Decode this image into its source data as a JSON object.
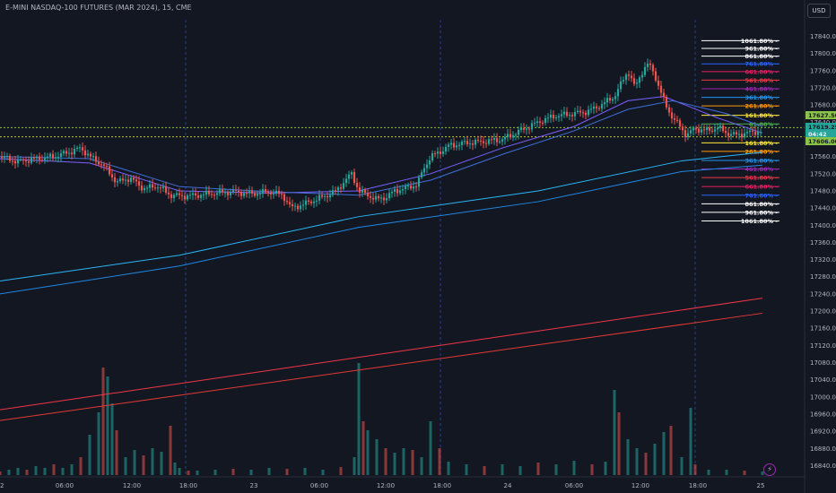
{
  "symbol_title": "E-MINI NASDAQ-100 FUTURES (MAR 2024), 15, CME",
  "currency_label": "USD",
  "chart_data": {
    "type": "candlestick",
    "ylim": [
      16820,
      17860
    ],
    "y_ticks": [
      17840,
      17800,
      17760,
      17720,
      17680,
      17640,
      17600,
      17560,
      17520,
      17480,
      17440,
      17400,
      17360,
      17320,
      17280,
      17240,
      17200,
      17160,
      17120,
      17080,
      17040,
      17000,
      16960,
      16920,
      16880,
      16840
    ],
    "x_ticks": [
      "2",
      "06:00",
      "12:00",
      "18:00",
      "23",
      "06:00",
      "12:00",
      "18:00",
      "24",
      "06:00",
      "12:00",
      "18:00",
      "25"
    ],
    "session_separators": [
      "18:00",
      "18:00",
      "18:00"
    ],
    "price_labels": [
      {
        "value": "17627.50",
        "color": "#8bc34a"
      },
      {
        "value": "17619.25",
        "color": "#26a69a"
      },
      {
        "value": "04:42",
        "color": "#26a69a"
      },
      {
        "value": "17606.00",
        "color": "#8bc34a"
      }
    ],
    "fib_levels": [
      {
        "label": "1061.80%",
        "value": 17830,
        "color": "#ffffff"
      },
      {
        "label": "961.80%",
        "value": 17812,
        "color": "#ffffff"
      },
      {
        "label": "861.80%",
        "value": 17794,
        "color": "#ffffff"
      },
      {
        "label": "761.80%",
        "value": 17776,
        "color": "#2962ff"
      },
      {
        "label": "661.80%",
        "value": 17758,
        "color": "#e91e63"
      },
      {
        "label": "561.80%",
        "value": 17738,
        "color": "#f23645"
      },
      {
        "label": "461.80%",
        "value": 17718,
        "color": "#9c27b0"
      },
      {
        "label": "361.80%",
        "value": 17698,
        "color": "#2196f3"
      },
      {
        "label": "261.80%",
        "value": 17678,
        "color": "#ff9800"
      },
      {
        "label": "161.80%",
        "value": 17656,
        "color": "#ffeb3b"
      },
      {
        "label": "61.80%",
        "value": 17636,
        "color": "#4caf50"
      },
      {
        "label": "161.80%",
        "value": 17592,
        "color": "#ffeb3b"
      },
      {
        "label": "261.80%",
        "value": 17572,
        "color": "#ff9800"
      },
      {
        "label": "361.80%",
        "value": 17551,
        "color": "#2196f3"
      },
      {
        "label": "461.80%",
        "value": 17531,
        "color": "#9c27b0"
      },
      {
        "label": "561.80%",
        "value": 17511,
        "color": "#f23645"
      },
      {
        "label": "661.80%",
        "value": 17490,
        "color": "#e91e63"
      },
      {
        "label": "761.80%",
        "value": 17470,
        "color": "#2962ff"
      },
      {
        "label": "861.80%",
        "value": 17450,
        "color": "#ffffff"
      },
      {
        "label": "961.80%",
        "value": 17430,
        "color": "#ffffff"
      },
      {
        "label": "1061.80%",
        "value": 17410,
        "color": "#ffffff"
      }
    ],
    "dotted_price_lines": [
      {
        "value": 17627.5,
        "color": "#8bc34a"
      },
      {
        "value": 17606,
        "color": "#c0ca33"
      }
    ],
    "close_path": [
      [
        0,
        17560
      ],
      [
        20,
        17548
      ],
      [
        40,
        17555
      ],
      [
        60,
        17560
      ],
      [
        80,
        17572
      ],
      [
        90,
        17580
      ],
      [
        100,
        17560
      ],
      [
        115,
        17540
      ],
      [
        130,
        17500
      ],
      [
        145,
        17510
      ],
      [
        160,
        17485
      ],
      [
        175,
        17492
      ],
      [
        190,
        17470
      ],
      [
        205,
        17468
      ],
      [
        220,
        17470
      ],
      [
        240,
        17475
      ],
      [
        260,
        17478
      ],
      [
        280,
        17473
      ],
      [
        300,
        17478
      ],
      [
        315,
        17470
      ],
      [
        325,
        17440
      ],
      [
        340,
        17450
      ],
      [
        360,
        17466
      ],
      [
        375,
        17480
      ],
      [
        385,
        17505
      ],
      [
        392,
        17520
      ],
      [
        400,
        17480
      ],
      [
        410,
        17470
      ],
      [
        420,
        17460
      ],
      [
        430,
        17465
      ],
      [
        440,
        17480
      ],
      [
        455,
        17488
      ],
      [
        465,
        17495
      ],
      [
        472,
        17530
      ],
      [
        480,
        17560
      ],
      [
        490,
        17570
      ],
      [
        500,
        17585
      ],
      [
        520,
        17592
      ],
      [
        540,
        17595
      ],
      [
        560,
        17600
      ],
      [
        575,
        17615
      ],
      [
        590,
        17630
      ],
      [
        605,
        17645
      ],
      [
        620,
        17655
      ],
      [
        640,
        17660
      ],
      [
        655,
        17665
      ],
      [
        670,
        17680
      ],
      [
        685,
        17700
      ],
      [
        695,
        17740
      ],
      [
        700,
        17760
      ],
      [
        708,
        17720
      ],
      [
        715,
        17755
      ],
      [
        722,
        17775
      ],
      [
        728,
        17760
      ],
      [
        735,
        17720
      ],
      [
        742,
        17680
      ],
      [
        750,
        17650
      ],
      [
        758,
        17630
      ],
      [
        765,
        17610
      ],
      [
        775,
        17625
      ],
      [
        790,
        17620
      ],
      [
        800,
        17628
      ],
      [
        810,
        17615
      ],
      [
        820,
        17610
      ],
      [
        835,
        17616
      ],
      [
        850,
        17619
      ]
    ],
    "volume": [
      [
        0,
        4
      ],
      [
        10,
        6
      ],
      [
        20,
        8
      ],
      [
        30,
        6
      ],
      [
        40,
        10
      ],
      [
        50,
        8
      ],
      [
        60,
        12
      ],
      [
        70,
        8
      ],
      [
        80,
        12
      ],
      [
        90,
        20
      ],
      [
        100,
        45
      ],
      [
        110,
        70
      ],
      [
        115,
        120
      ],
      [
        120,
        110
      ],
      [
        125,
        80
      ],
      [
        130,
        50
      ],
      [
        140,
        20
      ],
      [
        150,
        28
      ],
      [
        160,
        22
      ],
      [
        170,
        30
      ],
      [
        180,
        26
      ],
      [
        190,
        55
      ],
      [
        195,
        14
      ],
      [
        200,
        8
      ],
      [
        210,
        5
      ],
      [
        220,
        5
      ],
      [
        240,
        6
      ],
      [
        260,
        7
      ],
      [
        280,
        6
      ],
      [
        300,
        8
      ],
      [
        320,
        7
      ],
      [
        340,
        8
      ],
      [
        360,
        6
      ],
      [
        380,
        9
      ],
      [
        395,
        20
      ],
      [
        400,
        125
      ],
      [
        405,
        60
      ],
      [
        410,
        50
      ],
      [
        420,
        40
      ],
      [
        430,
        30
      ],
      [
        440,
        25
      ],
      [
        450,
        30
      ],
      [
        460,
        28
      ],
      [
        470,
        20
      ],
      [
        480,
        60
      ],
      [
        490,
        30
      ],
      [
        500,
        15
      ],
      [
        520,
        12
      ],
      [
        540,
        10
      ],
      [
        560,
        12
      ],
      [
        580,
        10
      ],
      [
        600,
        14
      ],
      [
        620,
        12
      ],
      [
        640,
        16
      ],
      [
        660,
        12
      ],
      [
        675,
        15
      ],
      [
        685,
        95
      ],
      [
        690,
        70
      ],
      [
        700,
        40
      ],
      [
        710,
        30
      ],
      [
        720,
        25
      ],
      [
        730,
        35
      ],
      [
        740,
        48
      ],
      [
        748,
        55
      ],
      [
        760,
        20
      ],
      [
        770,
        75
      ],
      [
        775,
        12
      ],
      [
        790,
        6
      ],
      [
        810,
        6
      ],
      [
        830,
        5
      ],
      [
        850,
        4
      ]
    ],
    "moving_averages": [
      {
        "name": "",
        "color": "#7b61ff",
        "points": [
          [
            0,
            17555
          ],
          [
            100,
            17545
          ],
          [
            200,
            17480
          ],
          [
            300,
            17475
          ],
          [
            400,
            17480
          ],
          [
            480,
            17520
          ],
          [
            560,
            17580
          ],
          [
            640,
            17630
          ],
          [
            700,
            17690
          ],
          [
            740,
            17700
          ],
          [
            800,
            17650
          ],
          [
            850,
            17615
          ]
        ]
      },
      {
        "name": "",
        "color": "#3f6fd8",
        "points": [
          [
            0,
            17560
          ],
          [
            100,
            17555
          ],
          [
            200,
            17490
          ],
          [
            300,
            17478
          ],
          [
            400,
            17470
          ],
          [
            480,
            17505
          ],
          [
            560,
            17565
          ],
          [
            640,
            17620
          ],
          [
            700,
            17670
          ],
          [
            750,
            17690
          ],
          [
            810,
            17660
          ],
          [
            850,
            17630
          ]
        ]
      },
      {
        "name": "",
        "color": "#29b6f6",
        "points": [
          [
            0,
            17270
          ],
          [
            200,
            17330
          ],
          [
            400,
            17420
          ],
          [
            600,
            17480
          ],
          [
            760,
            17550
          ],
          [
            850,
            17570
          ]
        ]
      },
      {
        "name": "",
        "color": "#1e88e5",
        "points": [
          [
            0,
            17240
          ],
          [
            200,
            17305
          ],
          [
            400,
            17395
          ],
          [
            600,
            17455
          ],
          [
            760,
            17525
          ],
          [
            850,
            17540
          ]
        ]
      },
      {
        "name": "",
        "color": "#f23645",
        "points": [
          [
            0,
            16970
          ],
          [
            850,
            17230
          ]
        ]
      },
      {
        "name": "",
        "color": "#e53935",
        "points": [
          [
            0,
            16945
          ],
          [
            850,
            17195
          ]
        ]
      }
    ]
  }
}
